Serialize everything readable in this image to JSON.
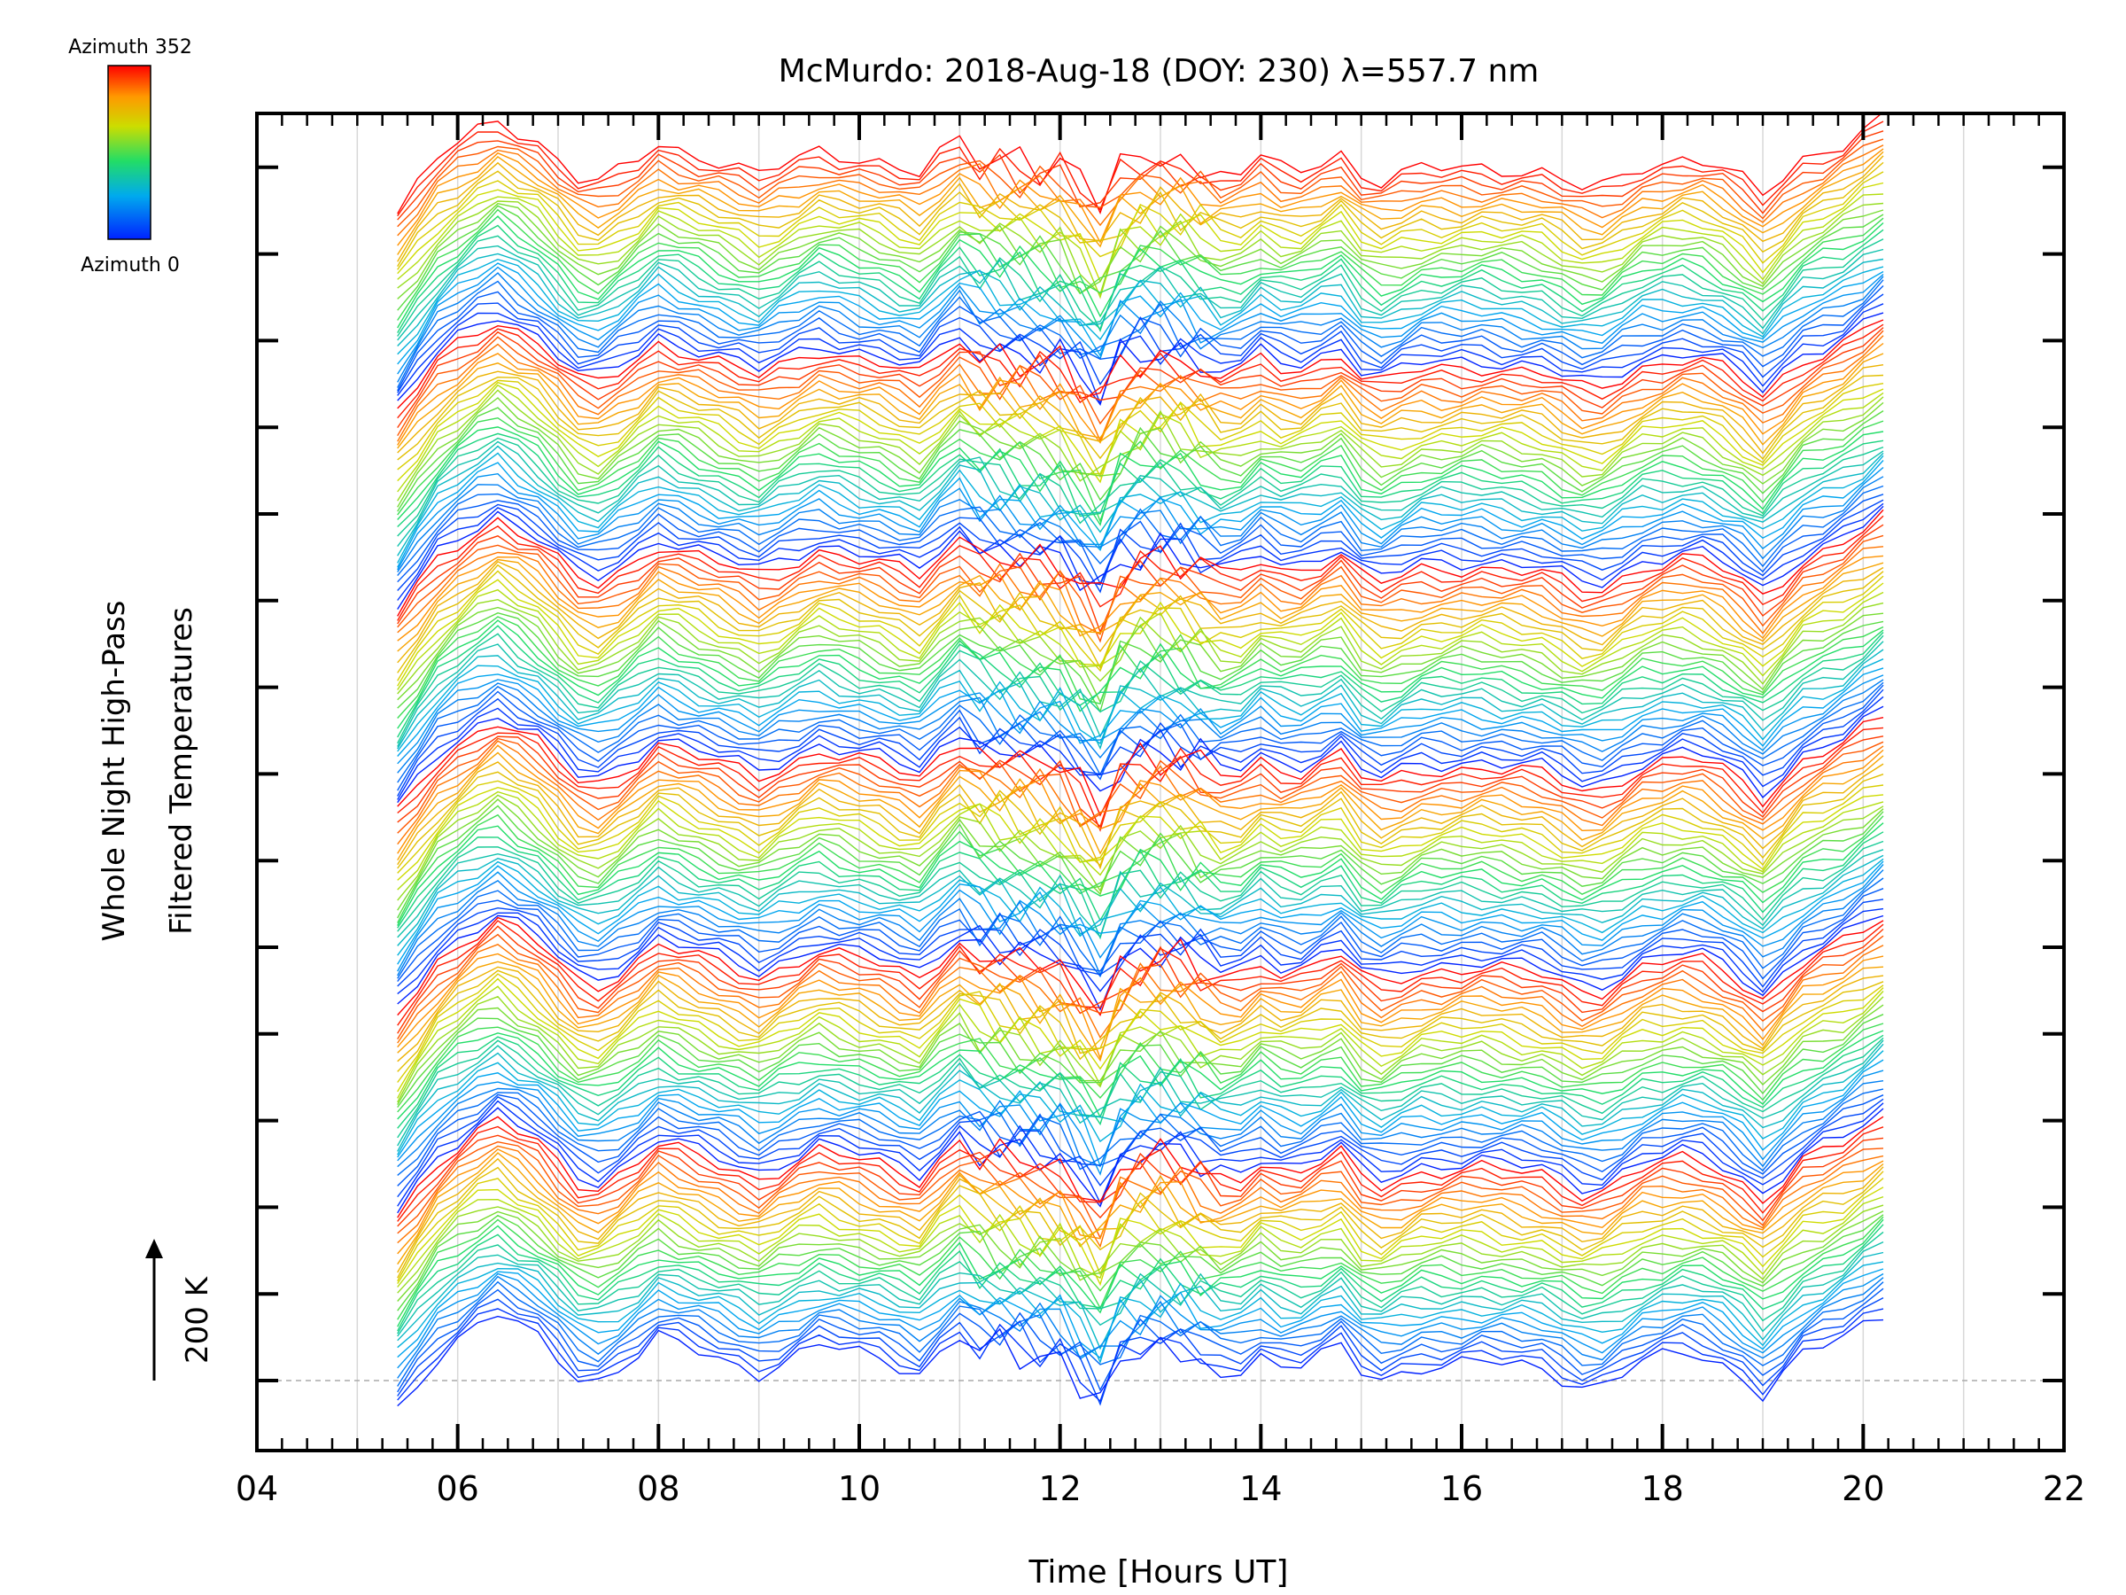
{
  "chart_data": {
    "type": "line",
    "title": "McMurdo: 2018-Aug-18 (DOY: 230) λ=557.7 nm",
    "xlabel": "Time [Hours UT]",
    "ylabel_line1": "Whole Night High-Pass",
    "ylabel_line2": "Filtered Temperatures",
    "scale_bar_label": "200 K",
    "xlim": [
      4,
      22
    ],
    "x_ticks": [
      "04",
      "06",
      "08",
      "10",
      "12",
      "14",
      "16",
      "18",
      "20",
      "22"
    ],
    "x_tick_values": [
      4,
      6,
      8,
      10,
      12,
      14,
      16,
      18,
      20,
      22
    ],
    "colorbar": {
      "top_label": "Azimuth 352",
      "bottom_label": "Azimuth 0",
      "range": [
        0,
        352
      ]
    },
    "n_series": 180,
    "n_azimuth_cycles": 6,
    "time_start": 5.4,
    "time_end": 20.3,
    "time_step": 0.2,
    "trend": {
      "hours": [
        5.4,
        5.8,
        6.1,
        6.4,
        6.8,
        7.3,
        7.7,
        8.0,
        8.5,
        9.0,
        9.6,
        10.2,
        10.7,
        10.9,
        11.2,
        11.6,
        12.0,
        12.4,
        12.6,
        12.9,
        13.3,
        13.7,
        14.0,
        14.3,
        14.8,
        15.1,
        15.6,
        16.2,
        16.8,
        17.3,
        17.8,
        18.3,
        18.7,
        19.0,
        19.4,
        19.8,
        20.3
      ],
      "offsets_k": [
        -60,
        20,
        55,
        80,
        45,
        -25,
        10,
        45,
        20,
        -5,
        35,
        15,
        -10,
        60,
        30,
        20,
        10,
        -40,
        10,
        30,
        15,
        -10,
        20,
        0,
        30,
        -20,
        5,
        10,
        0,
        -30,
        10,
        25,
        0,
        -35,
        20,
        45,
        90
      ]
    },
    "series_naming": "Each trace = one azimuth/zenith sample; color encodes azimuth (0 = blue, 352 = red)"
  }
}
